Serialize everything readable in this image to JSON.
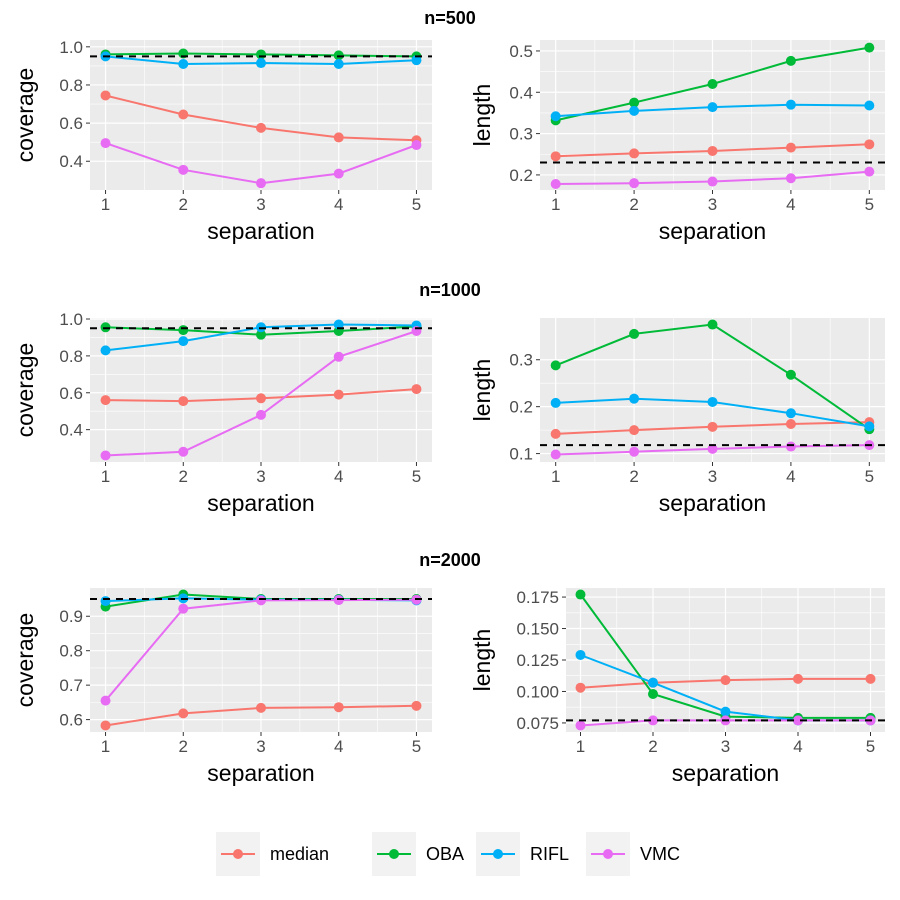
{
  "figure": {
    "legend": {
      "position": "bottom",
      "entries": [
        {
          "name": "median",
          "color": "#F8766D"
        },
        {
          "name": "OBA",
          "color": "#00BA38"
        },
        {
          "name": "RIFL",
          "color": "#00B0F6"
        },
        {
          "name": "VMC",
          "color": "#E76BF3"
        }
      ]
    }
  },
  "chart_data": [
    {
      "type": "line",
      "row_title": "n=500",
      "xlabel": "separation",
      "ylabel": "coverage",
      "x": [
        1,
        2,
        3,
        4,
        5
      ],
      "xticks": [
        "1",
        "2",
        "3",
        "4",
        "5"
      ],
      "xlim": [
        0.8,
        5.2
      ],
      "ylim": [
        0.285,
        1.0
      ],
      "yticks": [
        "0.4",
        "0.6",
        "0.8",
        "1.0"
      ],
      "ytick_values": [
        0.4,
        0.6,
        0.8,
        1.0
      ],
      "reference_line": 0.95,
      "series": [
        {
          "name": "median",
          "color": "#F8766D",
          "values": [
            0.745,
            0.645,
            0.575,
            0.525,
            0.51
          ]
        },
        {
          "name": "OBA",
          "color": "#00BA38",
          "values": [
            0.96,
            0.965,
            0.96,
            0.955,
            0.95
          ]
        },
        {
          "name": "RIFL",
          "color": "#00B0F6",
          "values": [
            0.95,
            0.91,
            0.915,
            0.91,
            0.93
          ]
        },
        {
          "name": "VMC",
          "color": "#E76BF3",
          "values": [
            0.495,
            0.355,
            0.285,
            0.335,
            0.485
          ]
        }
      ]
    },
    {
      "type": "line",
      "row_title": "",
      "xlabel": "separation",
      "ylabel": "length",
      "x": [
        1,
        2,
        3,
        4,
        5
      ],
      "xticks": [
        "1",
        "2",
        "3",
        "4",
        "5"
      ],
      "xlim": [
        0.8,
        5.2
      ],
      "ylim": [
        0.18,
        0.51
      ],
      "yticks": [
        "0.2",
        "0.3",
        "0.4",
        "0.5"
      ],
      "ytick_values": [
        0.2,
        0.3,
        0.4,
        0.5
      ],
      "reference_line": 0.23,
      "series": [
        {
          "name": "median",
          "color": "#F8766D",
          "values": [
            0.245,
            0.252,
            0.258,
            0.266,
            0.274
          ]
        },
        {
          "name": "OBA",
          "color": "#00BA38",
          "values": [
            0.332,
            0.375,
            0.42,
            0.476,
            0.508
          ]
        },
        {
          "name": "RIFL",
          "color": "#00B0F6",
          "values": [
            0.342,
            0.355,
            0.364,
            0.37,
            0.368
          ]
        },
        {
          "name": "VMC",
          "color": "#E76BF3",
          "values": [
            0.178,
            0.18,
            0.184,
            0.192,
            0.208
          ]
        }
      ]
    },
    {
      "type": "line",
      "row_title": "n=1000",
      "xlabel": "separation",
      "ylabel": "coverage",
      "x": [
        1,
        2,
        3,
        4,
        5
      ],
      "xticks": [
        "1",
        "2",
        "3",
        "4",
        "5"
      ],
      "xlim": [
        0.8,
        5.2
      ],
      "ylim": [
        0.26,
        0.97
      ],
      "yticks": [
        "0.4",
        "0.6",
        "0.8",
        "1.0"
      ],
      "ytick_values": [
        0.4,
        0.6,
        0.8,
        1.0
      ],
      "reference_line": 0.95,
      "series": [
        {
          "name": "median",
          "color": "#F8766D",
          "values": [
            0.56,
            0.555,
            0.57,
            0.59,
            0.62
          ]
        },
        {
          "name": "OBA",
          "color": "#00BA38",
          "values": [
            0.955,
            0.94,
            0.915,
            0.935,
            0.96
          ]
        },
        {
          "name": "RIFL",
          "color": "#00B0F6",
          "values": [
            0.83,
            0.88,
            0.955,
            0.97,
            0.965
          ]
        },
        {
          "name": "VMC",
          "color": "#E76BF3",
          "values": [
            0.26,
            0.28,
            0.48,
            0.795,
            0.935
          ]
        }
      ]
    },
    {
      "type": "line",
      "row_title": "",
      "xlabel": "separation",
      "ylabel": "length",
      "x": [
        1,
        2,
        3,
        4,
        5
      ],
      "xticks": [
        "1",
        "2",
        "3",
        "4",
        "5"
      ],
      "xlim": [
        0.8,
        5.2
      ],
      "ylim": [
        0.096,
        0.375
      ],
      "yticks": [
        "0.1",
        "0.2",
        "0.3"
      ],
      "ytick_values": [
        0.1,
        0.2,
        0.3
      ],
      "reference_line": 0.118,
      "series": [
        {
          "name": "median",
          "color": "#F8766D",
          "values": [
            0.142,
            0.15,
            0.157,
            0.163,
            0.167
          ]
        },
        {
          "name": "OBA",
          "color": "#00BA38",
          "values": [
            0.288,
            0.355,
            0.375,
            0.268,
            0.152
          ]
        },
        {
          "name": "RIFL",
          "color": "#00B0F6",
          "values": [
            0.208,
            0.217,
            0.21,
            0.186,
            0.158
          ]
        },
        {
          "name": "VMC",
          "color": "#E76BF3",
          "values": [
            0.098,
            0.104,
            0.11,
            0.115,
            0.118
          ]
        }
      ]
    },
    {
      "type": "line",
      "row_title": "n=2000",
      "xlabel": "separation",
      "ylabel": "coverage",
      "x": [
        1,
        2,
        3,
        4,
        5
      ],
      "xticks": [
        "1",
        "2",
        "3",
        "4",
        "5"
      ],
      "xlim": [
        0.8,
        5.2
      ],
      "ylim": [
        0.583,
        0.963
      ],
      "yticks": [
        "0.6",
        "0.7",
        "0.8",
        "0.9"
      ],
      "ytick_values": [
        0.6,
        0.7,
        0.8,
        0.9
      ],
      "reference_line": 0.95,
      "series": [
        {
          "name": "median",
          "color": "#F8766D",
          "values": [
            0.583,
            0.618,
            0.634,
            0.636,
            0.64
          ]
        },
        {
          "name": "OBA",
          "color": "#00BA38",
          "values": [
            0.928,
            0.963,
            0.95,
            0.95,
            0.95
          ]
        },
        {
          "name": "RIFL",
          "color": "#00B0F6",
          "values": [
            0.944,
            0.952,
            0.948,
            0.948,
            0.946
          ]
        },
        {
          "name": "VMC",
          "color": "#E76BF3",
          "values": [
            0.655,
            0.922,
            0.946,
            0.947,
            0.948
          ]
        }
      ]
    },
    {
      "type": "line",
      "row_title": "",
      "xlabel": "separation",
      "ylabel": "length",
      "x": [
        1,
        2,
        3,
        4,
        5
      ],
      "xticks": [
        "1",
        "2",
        "3",
        "4",
        "5"
      ],
      "xlim": [
        0.8,
        5.2
      ],
      "ylim": [
        0.073,
        0.177
      ],
      "yticks": [
        "0.075",
        "0.100",
        "0.125",
        "0.150",
        "0.175"
      ],
      "ytick_values": [
        0.075,
        0.1,
        0.125,
        0.15,
        0.175
      ],
      "reference_line": 0.077,
      "series": [
        {
          "name": "median",
          "color": "#F8766D",
          "values": [
            0.103,
            0.107,
            0.109,
            0.11,
            0.11
          ]
        },
        {
          "name": "OBA",
          "color": "#00BA38",
          "values": [
            0.177,
            0.098,
            0.08,
            0.079,
            0.079
          ]
        },
        {
          "name": "RIFL",
          "color": "#00B0F6",
          "values": [
            0.129,
            0.107,
            0.084,
            0.077,
            0.077
          ]
        },
        {
          "name": "VMC",
          "color": "#E76BF3",
          "values": [
            0.073,
            0.077,
            0.077,
            0.077,
            0.077
          ]
        }
      ]
    }
  ]
}
